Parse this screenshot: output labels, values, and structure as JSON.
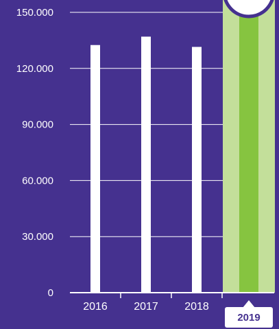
{
  "chart_data": {
    "type": "bar",
    "categories": [
      "2016",
      "2017",
      "2018",
      "2019"
    ],
    "values": [
      132500,
      137000,
      131500,
      null
    ],
    "ylim": [
      0,
      150000
    ],
    "yticks": [
      0,
      30000,
      60000,
      90000,
      120000,
      150000
    ],
    "ytick_labels": [
      "0",
      "30.000",
      "60.000",
      "90.000",
      "120.000",
      "150.000"
    ],
    "grid": true,
    "highlight_category": "2019",
    "colors": {
      "background": "#45318f",
      "bars": "#ffffff",
      "highlight_band": "#c3df9a",
      "highlight_bar": "#86c440",
      "grid": "#ffffff",
      "badge_fill": "#ffffff",
      "badge_text": "#45318f"
    }
  }
}
